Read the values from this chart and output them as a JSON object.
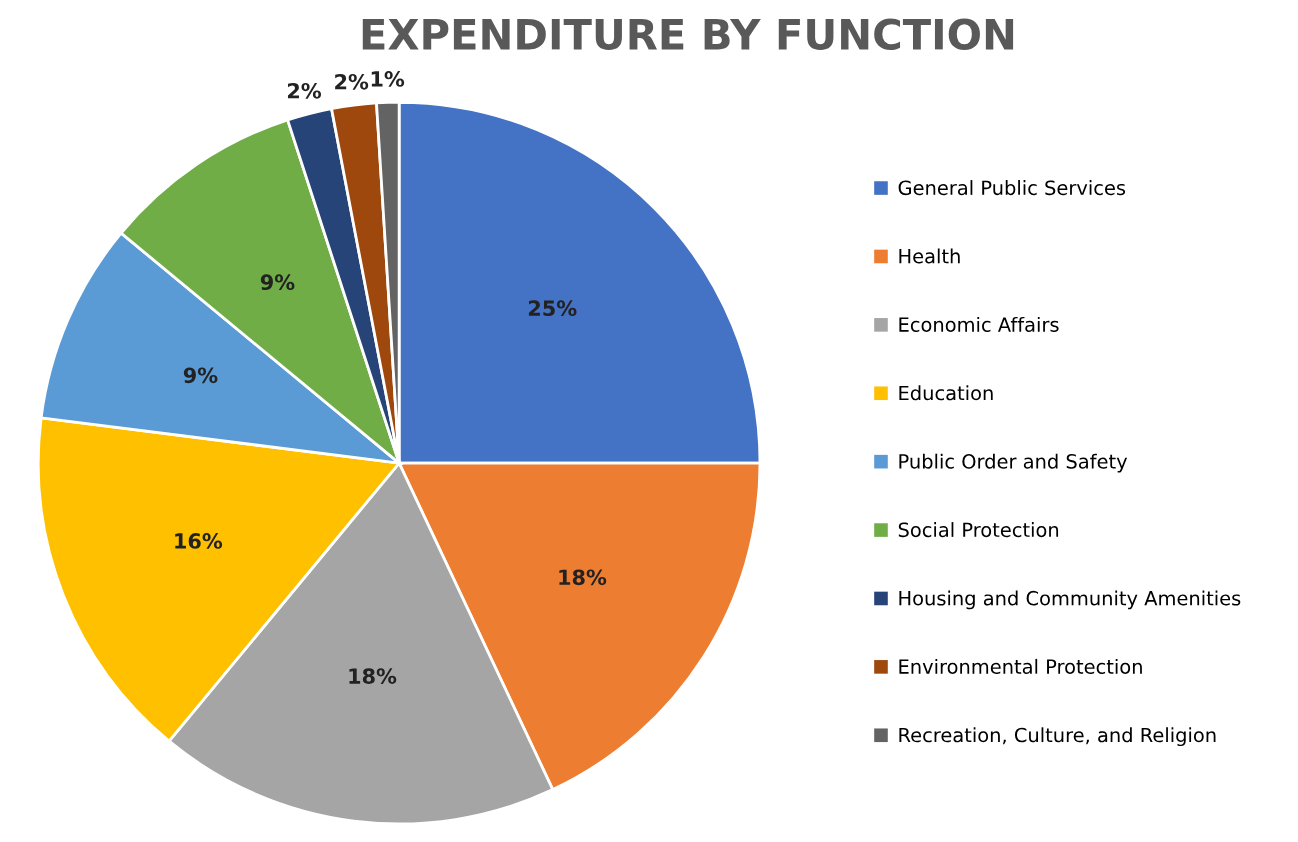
{
  "chart_data": {
    "type": "pie",
    "title": "EXPENDITURE BY FUNCTION",
    "categories": [
      "General Public Services",
      "Health",
      "Economic Affairs",
      "Education",
      "Public Order and Safety",
      "Social Protection",
      "Housing and Community Amenities",
      "Environmental Protection",
      "Recreation, Culture, and Religion"
    ],
    "values": [
      25,
      18,
      18,
      16,
      9,
      9,
      2,
      2,
      1
    ],
    "value_labels": [
      "25%",
      "18%",
      "18%",
      "16%",
      "9%",
      "9%",
      "2%",
      "2%",
      "1%"
    ],
    "colors": [
      "#4472c4",
      "#ed7d31",
      "#a5a5a5",
      "#ffc000",
      "#5b9bd5",
      "#70ad47",
      "#264478",
      "#9e480e",
      "#636363"
    ],
    "legend": "right"
  }
}
